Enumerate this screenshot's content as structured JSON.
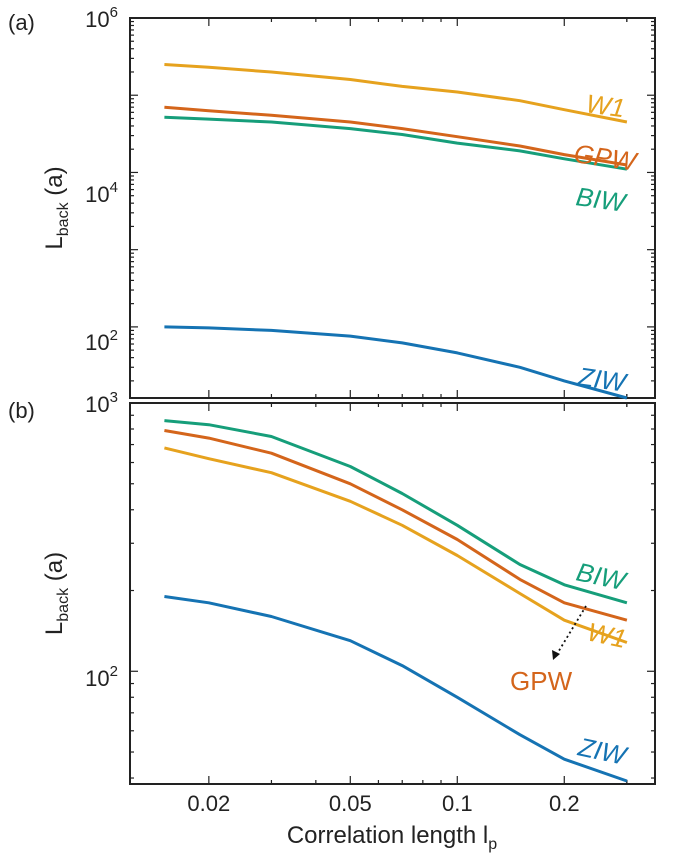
{
  "chart_data": [
    {
      "panel": "(a)",
      "type": "line",
      "ylabel_main": "L",
      "ylabel_sub": "back",
      "ylabel_unit": "(a)",
      "yscale": "log",
      "xscale": "log",
      "ylim": [
        12,
        1000000
      ],
      "xlim": [
        0.012,
        0.36
      ],
      "ytick_labels": [
        {
          "base": "10",
          "exp": "2",
          "value": 100
        },
        {
          "base": "10",
          "exp": "4",
          "value": 10000
        },
        {
          "base": "10",
          "exp": "6",
          "value": 1000000
        }
      ],
      "series": [
        {
          "name": "W1",
          "color": "#E6A21E",
          "x": [
            0.015,
            0.02,
            0.03,
            0.05,
            0.07,
            0.1,
            0.15,
            0.2,
            0.3
          ],
          "values": [
            250000,
            230000,
            200000,
            160000,
            130000,
            110000,
            85000,
            65000,
            45000
          ]
        },
        {
          "name": "GPW",
          "color": "#D4651B",
          "x": [
            0.015,
            0.02,
            0.03,
            0.05,
            0.07,
            0.1,
            0.15,
            0.2,
            0.3
          ],
          "values": [
            70000,
            63000,
            55000,
            45000,
            37000,
            29000,
            22000,
            17000,
            12500
          ]
        },
        {
          "name": "BIW",
          "color": "#169E7A",
          "x": [
            0.015,
            0.02,
            0.03,
            0.05,
            0.07,
            0.1,
            0.15,
            0.2,
            0.3
          ],
          "values": [
            52000,
            49000,
            45000,
            37000,
            31000,
            24000,
            19000,
            15000,
            11000
          ]
        },
        {
          "name": "ZIW",
          "color": "#1573B3",
          "x": [
            0.015,
            0.02,
            0.03,
            0.05,
            0.07,
            0.1,
            0.15,
            0.2,
            0.3
          ],
          "values": [
            100,
            97,
            90,
            76,
            62,
            46,
            30,
            20,
            12
          ]
        }
      ]
    },
    {
      "panel": "(b)",
      "type": "line",
      "ylabel_main": "L",
      "ylabel_sub": "back",
      "ylabel_unit": "(a)",
      "yscale": "log",
      "xscale": "log",
      "ylim": [
        38,
        1000
      ],
      "xlim": [
        0.012,
        0.36
      ],
      "ytick_labels": [
        {
          "base": "10",
          "exp": "2",
          "value": 100
        },
        {
          "base": "10",
          "exp": "3",
          "value": 1000
        }
      ],
      "xlabel": "Correlation length l",
      "xlabel_sub": "p",
      "xticks": [
        {
          "value": 0.02,
          "label": "0.02"
        },
        {
          "value": 0.05,
          "label": "0.05"
        },
        {
          "value": 0.1,
          "label": "0.1"
        },
        {
          "value": 0.2,
          "label": "0.2"
        }
      ],
      "series": [
        {
          "name": "BIW",
          "color": "#169E7A",
          "x": [
            0.015,
            0.02,
            0.03,
            0.05,
            0.07,
            0.1,
            0.15,
            0.2,
            0.3
          ],
          "values": [
            860,
            830,
            750,
            580,
            460,
            350,
            250,
            210,
            180
          ]
        },
        {
          "name": "GPW",
          "color": "#D4651B",
          "x": [
            0.015,
            0.02,
            0.03,
            0.05,
            0.07,
            0.1,
            0.15,
            0.2,
            0.3
          ],
          "values": [
            790,
            740,
            650,
            500,
            400,
            310,
            220,
            180,
            155
          ]
        },
        {
          "name": "W1",
          "color": "#E6A21E",
          "x": [
            0.015,
            0.02,
            0.03,
            0.05,
            0.07,
            0.1,
            0.15,
            0.2,
            0.3
          ],
          "values": [
            680,
            620,
            550,
            430,
            350,
            270,
            195,
            155,
            128
          ]
        },
        {
          "name": "ZIW",
          "color": "#1573B3",
          "x": [
            0.015,
            0.02,
            0.03,
            0.05,
            0.07,
            0.1,
            0.15,
            0.2,
            0.3
          ],
          "values": [
            190,
            180,
            160,
            130,
            105,
            80,
            58,
            47,
            39
          ]
        }
      ],
      "annotation": {
        "text": "GPW",
        "arrow": "dotted"
      }
    }
  ]
}
